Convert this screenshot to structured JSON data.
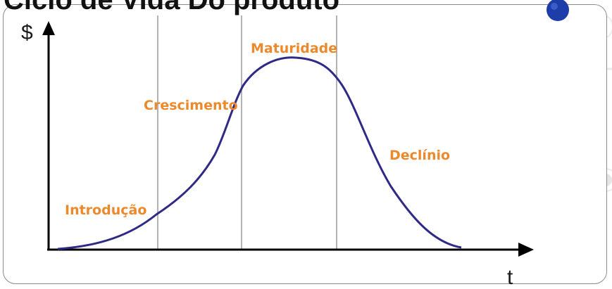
{
  "slide": {
    "title": "Ciclo de Vida Do produto"
  },
  "diagram": {
    "y_axis_label": "$",
    "x_axis_label": "t",
    "stages": [
      "Introdução",
      "Crescimento",
      "Maturidade",
      "Declínio"
    ]
  },
  "colors": {
    "curve": "#2e2a85",
    "stage_label": "#ea8a2c",
    "bullet": "#1f3da8",
    "axis": "#000000",
    "divider": "#9a9a9a"
  }
}
